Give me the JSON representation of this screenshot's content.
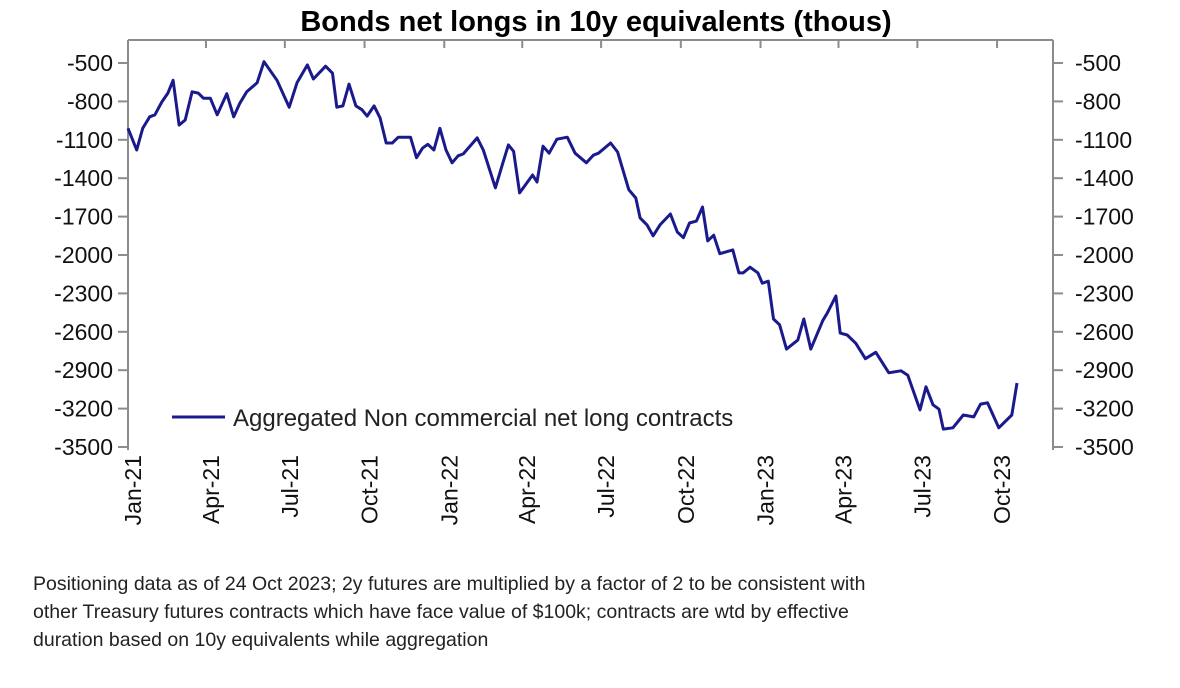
{
  "chart_data": {
    "type": "line",
    "title": "Bonds net longs in 10y equivalents (thous)",
    "xlabel": "",
    "ylabel": "",
    "ylim": [
      -3500,
      -500
    ],
    "yticks": [
      -500,
      -800,
      -1100,
      -1400,
      -1700,
      -2000,
      -2300,
      -2600,
      -2900,
      -3200,
      -3500
    ],
    "xlim": [
      "2021-01-01",
      "2023-10-24"
    ],
    "xtick_labels": [
      "Jan-21",
      "Apr-21",
      "Jul-21",
      "Oct-21",
      "Jan-22",
      "Apr-22",
      "Jul-22",
      "Oct-22",
      "Jan-23",
      "Apr-23",
      "Jul-23",
      "Oct-23"
    ],
    "xtick_dates": [
      "2021-01-01",
      "2021-04-01",
      "2021-07-01",
      "2021-10-01",
      "2022-01-01",
      "2022-04-01",
      "2022-07-01",
      "2022-10-01",
      "2023-01-01",
      "2023-04-01",
      "2023-07-01",
      "2023-10-01"
    ],
    "dual_y_axis": true,
    "grid": false,
    "legend_placement": "bottom-left",
    "series": [
      {
        "name": "Aggregated Non commercial net long contracts",
        "color": "#1a1a8c",
        "points": [
          [
            "2021-01-01",
            -1010
          ],
          [
            "2021-01-11",
            -1180
          ],
          [
            "2021-01-18",
            -1010
          ],
          [
            "2021-01-26",
            -920
          ],
          [
            "2021-02-01",
            -905
          ],
          [
            "2021-02-09",
            -805
          ],
          [
            "2021-02-16",
            -735
          ],
          [
            "2021-02-22",
            -635
          ],
          [
            "2021-03-01",
            -985
          ],
          [
            "2021-03-08",
            -945
          ],
          [
            "2021-03-16",
            -725
          ],
          [
            "2021-03-23",
            -735
          ],
          [
            "2021-03-29",
            -775
          ],
          [
            "2021-04-06",
            -775
          ],
          [
            "2021-04-14",
            -905
          ],
          [
            "2021-04-25",
            -740
          ],
          [
            "2021-05-03",
            -920
          ],
          [
            "2021-05-10",
            -815
          ],
          [
            "2021-05-18",
            -725
          ],
          [
            "2021-05-30",
            -655
          ],
          [
            "2021-06-07",
            -490
          ],
          [
            "2021-06-22",
            -635
          ],
          [
            "2021-07-06",
            -845
          ],
          [
            "2021-07-15",
            -655
          ],
          [
            "2021-07-27",
            -515
          ],
          [
            "2021-08-03",
            -625
          ],
          [
            "2021-08-17",
            -525
          ],
          [
            "2021-08-25",
            -580
          ],
          [
            "2021-08-30",
            -845
          ],
          [
            "2021-09-06",
            -835
          ],
          [
            "2021-09-13",
            -665
          ],
          [
            "2021-09-21",
            -835
          ],
          [
            "2021-09-28",
            -865
          ],
          [
            "2021-10-04",
            -915
          ],
          [
            "2021-10-12",
            -835
          ],
          [
            "2021-10-19",
            -930
          ],
          [
            "2021-10-26",
            -1125
          ],
          [
            "2021-11-02",
            -1125
          ],
          [
            "2021-11-09",
            -1080
          ],
          [
            "2021-11-23",
            -1080
          ],
          [
            "2021-11-30",
            -1240
          ],
          [
            "2021-12-07",
            -1165
          ],
          [
            "2021-12-13",
            -1135
          ],
          [
            "2021-12-20",
            -1180
          ],
          [
            "2021-12-27",
            -1010
          ],
          [
            "2022-01-03",
            -1180
          ],
          [
            "2022-01-10",
            -1280
          ],
          [
            "2022-01-17",
            -1225
          ],
          [
            "2022-01-23",
            -1210
          ],
          [
            "2022-02-08",
            -1085
          ],
          [
            "2022-02-15",
            -1180
          ],
          [
            "2022-03-01",
            -1475
          ],
          [
            "2022-03-09",
            -1295
          ],
          [
            "2022-03-16",
            -1140
          ],
          [
            "2022-03-22",
            -1190
          ],
          [
            "2022-03-29",
            -1515
          ],
          [
            "2022-04-13",
            -1375
          ],
          [
            "2022-04-18",
            -1430
          ],
          [
            "2022-04-25",
            -1150
          ],
          [
            "2022-05-02",
            -1205
          ],
          [
            "2022-05-11",
            -1095
          ],
          [
            "2022-05-23",
            -1080
          ],
          [
            "2022-06-01",
            -1205
          ],
          [
            "2022-06-14",
            -1280
          ],
          [
            "2022-06-22",
            -1220
          ],
          [
            "2022-06-28",
            -1205
          ],
          [
            "2022-07-12",
            -1125
          ],
          [
            "2022-07-20",
            -1195
          ],
          [
            "2022-08-02",
            -1490
          ],
          [
            "2022-08-10",
            -1555
          ],
          [
            "2022-08-15",
            -1710
          ],
          [
            "2022-08-23",
            -1765
          ],
          [
            "2022-08-30",
            -1850
          ],
          [
            "2022-09-07",
            -1765
          ],
          [
            "2022-09-19",
            -1680
          ],
          [
            "2022-09-27",
            -1820
          ],
          [
            "2022-10-04",
            -1865
          ],
          [
            "2022-10-11",
            -1750
          ],
          [
            "2022-10-19",
            -1735
          ],
          [
            "2022-10-26",
            -1625
          ],
          [
            "2022-11-01",
            -1890
          ],
          [
            "2022-11-08",
            -1845
          ],
          [
            "2022-11-15",
            -1990
          ],
          [
            "2022-11-30",
            -1960
          ],
          [
            "2022-12-07",
            -2140
          ],
          [
            "2022-12-12",
            -2140
          ],
          [
            "2022-12-20",
            -2095
          ],
          [
            "2022-12-29",
            -2140
          ],
          [
            "2023-01-03",
            -2220
          ],
          [
            "2023-01-10",
            -2205
          ],
          [
            "2023-01-16",
            -2500
          ],
          [
            "2023-01-23",
            -2545
          ],
          [
            "2023-01-31",
            -2735
          ],
          [
            "2023-02-13",
            -2665
          ],
          [
            "2023-02-20",
            -2500
          ],
          [
            "2023-02-28",
            -2735
          ],
          [
            "2023-03-14",
            -2510
          ],
          [
            "2023-03-19",
            -2455
          ],
          [
            "2023-03-29",
            -2320
          ],
          [
            "2023-04-03",
            -2610
          ],
          [
            "2023-04-11",
            -2625
          ],
          [
            "2023-04-21",
            -2690
          ],
          [
            "2023-05-02",
            -2810
          ],
          [
            "2023-05-14",
            -2760
          ],
          [
            "2023-05-29",
            -2920
          ],
          [
            "2023-06-12",
            -2905
          ],
          [
            "2023-06-20",
            -2940
          ],
          [
            "2023-07-04",
            -3210
          ],
          [
            "2023-07-11",
            -3030
          ],
          [
            "2023-07-19",
            -3170
          ],
          [
            "2023-07-26",
            -3205
          ],
          [
            "2023-07-31",
            -3360
          ],
          [
            "2023-08-11",
            -3350
          ],
          [
            "2023-08-23",
            -3250
          ],
          [
            "2023-09-04",
            -3265
          ],
          [
            "2023-09-12",
            -3165
          ],
          [
            "2023-09-20",
            -3155
          ],
          [
            "2023-10-03",
            -3350
          ],
          [
            "2023-10-18",
            -3250
          ],
          [
            "2023-10-24",
            -3000
          ]
        ]
      }
    ]
  },
  "footnote": [
    "Positioning data as of 24 Oct 2023; 2y futures are multiplied by a factor of 2 to be consistent with",
    "other Treasury futures contracts which have face value of $100k; contracts are wtd by effective",
    "duration based on 10y equivalents while aggregation"
  ]
}
